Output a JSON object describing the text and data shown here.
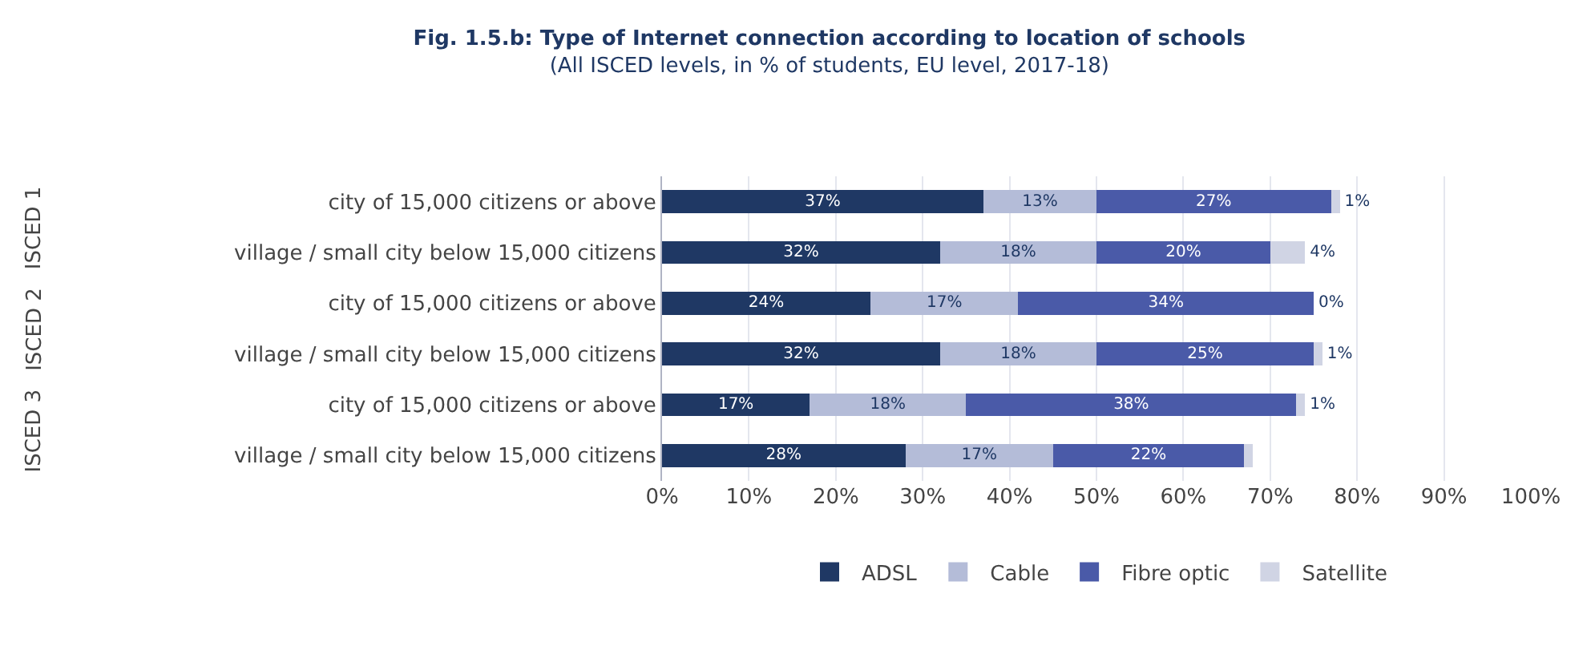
{
  "chart_data": {
    "type": "bar",
    "orientation": "horizontal",
    "stacked": true,
    "title": "Fig. 1.5.b: Type of Internet connection according to location of schools",
    "subtitle": "(All ISCED levels, in % of students, EU level, 2017-18)",
    "categories": [
      "city of 15,000 citizens or above",
      "village / small city below 15,000 citizens",
      "city of 15,000 citizens or above",
      "village / small city below 15,000 citizens",
      "city of 15,000 citizens or above",
      "village / small city below 15,000 citizens"
    ],
    "annotations": [
      "ISCED 1",
      "ISCED 2",
      "ISCED 3"
    ],
    "series": [
      {
        "name": "ADSL",
        "color": "#1f3864",
        "values": [
          37,
          32,
          24,
          32,
          17,
          28
        ],
        "value_labels": [
          "37%",
          "32%",
          "24%",
          "32%",
          "17%",
          "28%"
        ]
      },
      {
        "name": "Cable",
        "color": "#b4bcd8",
        "values": [
          13,
          18,
          17,
          18,
          18,
          17
        ],
        "value_labels": [
          "13%",
          "18%",
          "17%",
          "18%",
          "18%",
          "17%"
        ]
      },
      {
        "name": "Fibre optic",
        "color": "#4a5aa8",
        "values": [
          27,
          20,
          34,
          25,
          38,
          22
        ],
        "value_labels": [
          "27%",
          "20%",
          "34%",
          "25%",
          "38%",
          "22%"
        ]
      },
      {
        "name": "Satellite",
        "color": "#d0d4e4",
        "values": [
          1,
          4,
          0,
          1,
          1,
          1
        ],
        "value_labels": [
          "1%",
          "4%",
          "0%",
          "1%",
          "1%",
          null
        ]
      }
    ],
    "xlim": [
      0,
      100
    ],
    "xticks": [
      {
        "value": 0,
        "label": "0%"
      },
      {
        "value": 10,
        "label": "10%"
      },
      {
        "value": 20,
        "label": "20%"
      },
      {
        "value": 30,
        "label": "30%"
      },
      {
        "value": 40,
        "label": "40%"
      },
      {
        "value": 50,
        "label": "50%"
      },
      {
        "value": 60,
        "label": "60%"
      },
      {
        "value": 70,
        "label": "70%"
      },
      {
        "value": 80,
        "label": "80%"
      },
      {
        "value": 90,
        "label": "90%"
      },
      {
        "value": 100,
        "label": "100%"
      }
    ],
    "grid": "x",
    "legend": "bottom"
  }
}
